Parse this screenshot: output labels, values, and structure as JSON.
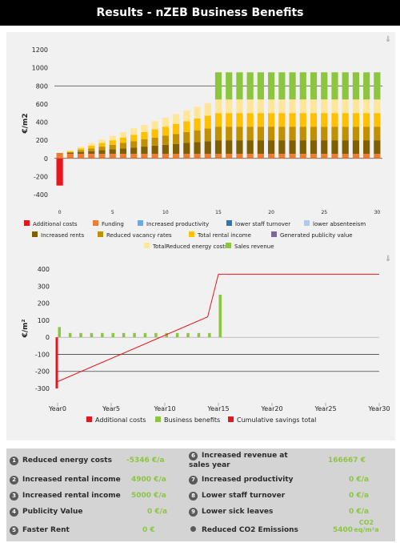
{
  "header": {
    "title": "Results - nZEB Business Benefits"
  },
  "icons": {
    "download": "download-arrow-icon",
    "bullet": "numbered-circle-icon",
    "co2": "dot-icon"
  },
  "colors": {
    "additional_costs": "#e8151b",
    "funding": "#ee7d31",
    "increased_productivity": "#6fa8dc",
    "lower_staff_turnover": "#2e75b6",
    "lower_absenteeism": "#b4c7e7",
    "increased_rents": "#7f5f00",
    "reduced_vacancy_rates": "#c09000",
    "total_rental_income": "#ffc000",
    "generated_publicity_value": "#8064a2",
    "total_reduced_energy_costs": "#ffe699",
    "sales_revenue": "#8cc63f",
    "business_benefits": "#8cc63f",
    "cumulative": "#e8151b"
  },
  "chart_data": [
    {
      "type": "bar",
      "stacked": true,
      "ylabel": "€/m2",
      "ylim": [
        -400,
        1200
      ],
      "yticks": [
        -400,
        -200,
        0,
        200,
        400,
        600,
        800,
        1000,
        1200
      ],
      "xticks": [
        "0",
        "5",
        "10",
        "15",
        "20",
        "25",
        "30"
      ],
      "categories": [
        0,
        1,
        2,
        3,
        4,
        5,
        6,
        7,
        8,
        9,
        10,
        11,
        12,
        13,
        14,
        15,
        16,
        17,
        18,
        19,
        20,
        21,
        22,
        23,
        24,
        25,
        26,
        27,
        28,
        29,
        30
      ],
      "reference_line": 800,
      "legend_position": "bottom",
      "series": [
        {
          "name": "Additional costs",
          "key": "additional_costs",
          "values": [
            -300,
            0,
            0,
            0,
            0,
            0,
            0,
            0,
            0,
            0,
            0,
            0,
            0,
            0,
            0,
            0,
            0,
            0,
            0,
            0,
            0,
            0,
            0,
            0,
            0,
            0,
            0,
            0,
            0,
            0,
            0
          ]
        },
        {
          "name": "Funding",
          "key": "funding",
          "values": [
            60,
            50,
            50,
            50,
            50,
            50,
            50,
            50,
            50,
            50,
            50,
            50,
            50,
            50,
            50,
            50,
            50,
            50,
            50,
            50,
            50,
            50,
            50,
            50,
            50,
            50,
            50,
            50,
            50,
            50,
            50
          ]
        },
        {
          "name": "Increased productivity",
          "key": "increased_productivity",
          "values": [
            0,
            0,
            0,
            0,
            0,
            0,
            0,
            0,
            0,
            0,
            0,
            0,
            0,
            0,
            0,
            0,
            0,
            0,
            0,
            0,
            0,
            0,
            0,
            0,
            0,
            0,
            0,
            0,
            0,
            0,
            0
          ]
        },
        {
          "name": "lower staff turnover",
          "key": "lower_staff_turnover",
          "values": [
            0,
            0,
            0,
            0,
            0,
            0,
            0,
            0,
            0,
            0,
            0,
            0,
            0,
            0,
            0,
            0,
            0,
            0,
            0,
            0,
            0,
            0,
            0,
            0,
            0,
            0,
            0,
            0,
            0,
            0,
            0
          ]
        },
        {
          "name": "lower absenteeism",
          "key": "lower_absenteeism",
          "values": [
            0,
            0,
            0,
            0,
            0,
            0,
            0,
            0,
            0,
            0,
            0,
            0,
            0,
            0,
            0,
            0,
            0,
            0,
            0,
            0,
            0,
            0,
            0,
            0,
            0,
            0,
            0,
            0,
            0,
            0,
            0
          ]
        },
        {
          "name": "Increased rents",
          "key": "increased_rents",
          "values": [
            0,
            10,
            20,
            30,
            40,
            50,
            60,
            70,
            80,
            90,
            100,
            110,
            120,
            130,
            140,
            150,
            150,
            150,
            150,
            150,
            150,
            150,
            150,
            150,
            150,
            150,
            150,
            150,
            150,
            150,
            150
          ]
        },
        {
          "name": "Reduced vacancy rates",
          "key": "reduced_vacancy_rates",
          "values": [
            0,
            10,
            20,
            30,
            40,
            50,
            60,
            70,
            80,
            90,
            100,
            110,
            120,
            130,
            140,
            150,
            150,
            150,
            150,
            150,
            150,
            150,
            150,
            150,
            150,
            150,
            150,
            150,
            150,
            150,
            150
          ]
        },
        {
          "name": "Total rental income",
          "key": "total_rental_income",
          "values": [
            0,
            10,
            20,
            30,
            40,
            50,
            60,
            70,
            80,
            90,
            100,
            110,
            120,
            130,
            140,
            150,
            150,
            150,
            150,
            150,
            150,
            150,
            150,
            150,
            150,
            150,
            150,
            150,
            150,
            150,
            150
          ]
        },
        {
          "name": "Generated publicity value",
          "key": "generated_publicity_value",
          "values": [
            0,
            0,
            0,
            0,
            0,
            0,
            0,
            0,
            0,
            0,
            0,
            0,
            0,
            0,
            0,
            0,
            0,
            0,
            0,
            0,
            0,
            0,
            0,
            0,
            0,
            0,
            0,
            0,
            0,
            0,
            0
          ]
        },
        {
          "name": "TotalReduced energy costs",
          "key": "total_reduced_energy_costs",
          "values": [
            0,
            10,
            20,
            30,
            40,
            50,
            60,
            70,
            80,
            90,
            100,
            110,
            120,
            130,
            140,
            150,
            150,
            150,
            150,
            150,
            150,
            150,
            150,
            150,
            150,
            150,
            150,
            150,
            150,
            150,
            150
          ]
        },
        {
          "name": "Sales revenue",
          "key": "sales_revenue",
          "values": [
            0,
            0,
            0,
            0,
            0,
            0,
            0,
            0,
            0,
            0,
            0,
            0,
            0,
            0,
            0,
            0,
            0,
            0,
            0,
            0,
            0,
            0,
            0,
            0,
            0,
            0,
            0,
            0,
            0,
            0,
            0
          ],
          "note_steady_state_15_30": 0
        }
      ]
    },
    {
      "type": "bar",
      "ylabel": "€/m²",
      "ylim": [
        -300,
        400
      ],
      "yticks": [
        -300,
        -200,
        -100,
        0,
        100,
        200,
        300,
        400
      ],
      "xticks": [
        "Year0",
        "Year5",
        "Year10",
        "Year15",
        "Year20",
        "Year25",
        "Year30"
      ],
      "categories": [
        0,
        1,
        2,
        3,
        4,
        5,
        6,
        7,
        8,
        9,
        10,
        11,
        12,
        13,
        14,
        15
      ],
      "reference_lines": [
        -100,
        -200
      ],
      "legend_position": "bottom",
      "series": [
        {
          "name": "Additional costs",
          "key": "additional_costs",
          "values": [
            -300,
            0,
            0,
            0,
            0,
            0,
            0,
            0,
            0,
            0,
            0,
            0,
            0,
            0,
            0,
            0
          ]
        },
        {
          "name": "Business benefits",
          "key": "business_benefits",
          "values": [
            60,
            25,
            25,
            25,
            25,
            25,
            25,
            25,
            25,
            25,
            25,
            25,
            25,
            25,
            25,
            250
          ]
        },
        {
          "name": "Cumulative savings total",
          "key": "cumulative",
          "type": "line",
          "x": [
            0,
            14,
            15,
            30
          ],
          "values": [
            -260,
            120,
            370,
            370
          ]
        }
      ]
    }
  ],
  "stats": [
    {
      "num": "1",
      "label": "Reduced energy costs",
      "value": "-5346 €/a"
    },
    {
      "num": "2",
      "label": "Increased rental income",
      "value": "4900 €/a"
    },
    {
      "num": "3",
      "label": "Increased rental income",
      "value": "5000 €/a"
    },
    {
      "num": "4",
      "label": "Publicity Value",
      "value": "0 €/a"
    },
    {
      "num": "5",
      "label": "Faster Rent",
      "value": "0 €"
    },
    {
      "num": "6",
      "label": "Increased revenue at sales year",
      "value": "166667 €"
    },
    {
      "num": "7",
      "label": "Increased productivity",
      "value": "0 €/a"
    },
    {
      "num": "8",
      "label": "Lower staff turnover",
      "value": "0 €/a"
    },
    {
      "num": "9",
      "label": "Lower sick leaves",
      "value": "0 €/a"
    },
    {
      "num": "",
      "label": "Reduced CO2 Emissions",
      "value": "5400",
      "unit": "CO2 eq/m²a"
    }
  ]
}
